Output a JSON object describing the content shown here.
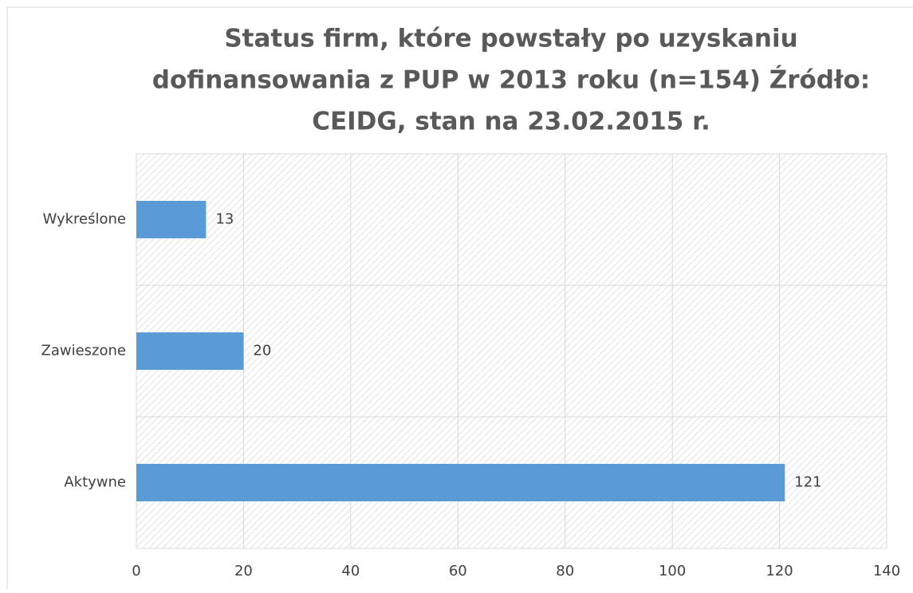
{
  "chart_data": {
    "type": "barh",
    "title": [
      "Status firm, które powstały po uzyskaniu",
      "dofinansowania z PUP w 2013 roku (n=154) Źródło:",
      "CEIDG, stan na 23.02.2015 r."
    ],
    "categories": [
      "Aktywne",
      "Zawieszone",
      "Wykreślone"
    ],
    "values": [
      121,
      20,
      13
    ],
    "color": "#5b9bd5",
    "xlim": [
      0,
      140
    ],
    "xticks": [
      0,
      20,
      40,
      60,
      80,
      100,
      120,
      140
    ],
    "grid": true
  }
}
